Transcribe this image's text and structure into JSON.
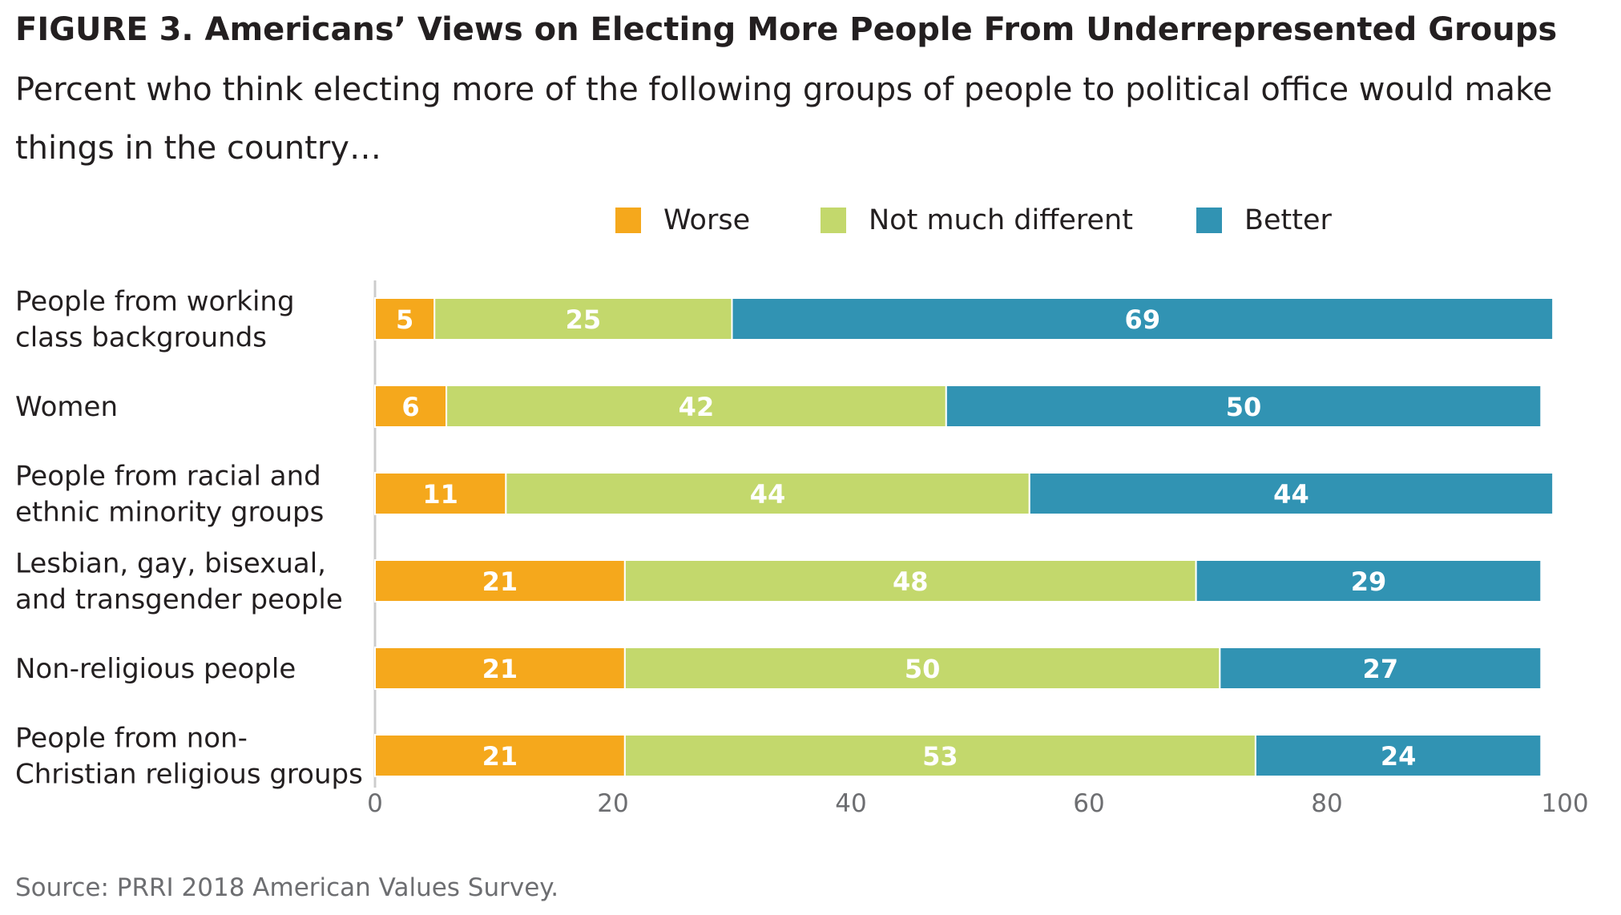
{
  "title": "FIGURE 3. Americans’ Views on Electing More People From Underrepresented Groups",
  "subtitle": "Percent who think electing more of the following groups of people to political office would make things in the country…",
  "source": "Source: PRRI 2018 American Values Survey.",
  "colors": {
    "worse": "#f5a81c",
    "not_much_different": "#c3d86c",
    "better": "#3193b3",
    "axis": "#cccccc",
    "tick_text": "#6d6e71"
  },
  "legend": [
    {
      "label": "Worse",
      "color": "#f5a81c"
    },
    {
      "label": "Not much different",
      "color": "#c3d86c"
    },
    {
      "label": "Better",
      "color": "#3193b3"
    }
  ],
  "chart_data": {
    "type": "bar",
    "orientation": "horizontal",
    "stacked": true,
    "title": "FIGURE 3. Americans’ Views on Electing More People From Underrepresented Groups",
    "subtitle": "Percent who think electing more of the following groups of people to political office would make things in the country…",
    "categories": [
      [
        "People from working",
        "class backgrounds"
      ],
      [
        "Women"
      ],
      [
        "People from racial and",
        "ethnic minority groups"
      ],
      [
        "Lesbian, gay, bisexual,",
        "and transgender people"
      ],
      [
        "Non-religious people"
      ],
      [
        "People from non-",
        "Christian religious groups"
      ]
    ],
    "series": [
      {
        "name": "Worse",
        "values": [
          5,
          6,
          11,
          21,
          21,
          21
        ]
      },
      {
        "name": "Not much different",
        "values": [
          25,
          42,
          44,
          48,
          50,
          53
        ]
      },
      {
        "name": "Better",
        "values": [
          69,
          50,
          44,
          29,
          27,
          24
        ]
      }
    ],
    "xlim": [
      0,
      100
    ],
    "x_ticks": [
      "0",
      "20",
      "40",
      "60",
      "80",
      "100"
    ],
    "grid": false,
    "legend_position": "top"
  }
}
